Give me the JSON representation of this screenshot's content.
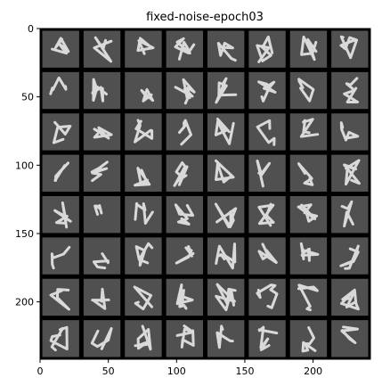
{
  "title": "fixed-noise-epoch03",
  "image_grid": {
    "rows": 8,
    "cols": 8,
    "description_source": "generated digit samples"
  },
  "axes": {
    "x_ticks": [
      "0",
      "50",
      "100",
      "150",
      "200"
    ],
    "x_tick_values": [
      0,
      50,
      100,
      150,
      200
    ],
    "y_ticks": [
      "0",
      "50",
      "100",
      "150",
      "200"
    ],
    "y_tick_values": [
      0,
      50,
      100,
      150,
      200
    ],
    "xlim": [
      0,
      242
    ],
    "ylim": [
      242,
      0
    ]
  },
  "colors": {
    "grid_lines": "#000000",
    "tile_background": "#505050",
    "stroke": "#e8e8e8"
  }
}
